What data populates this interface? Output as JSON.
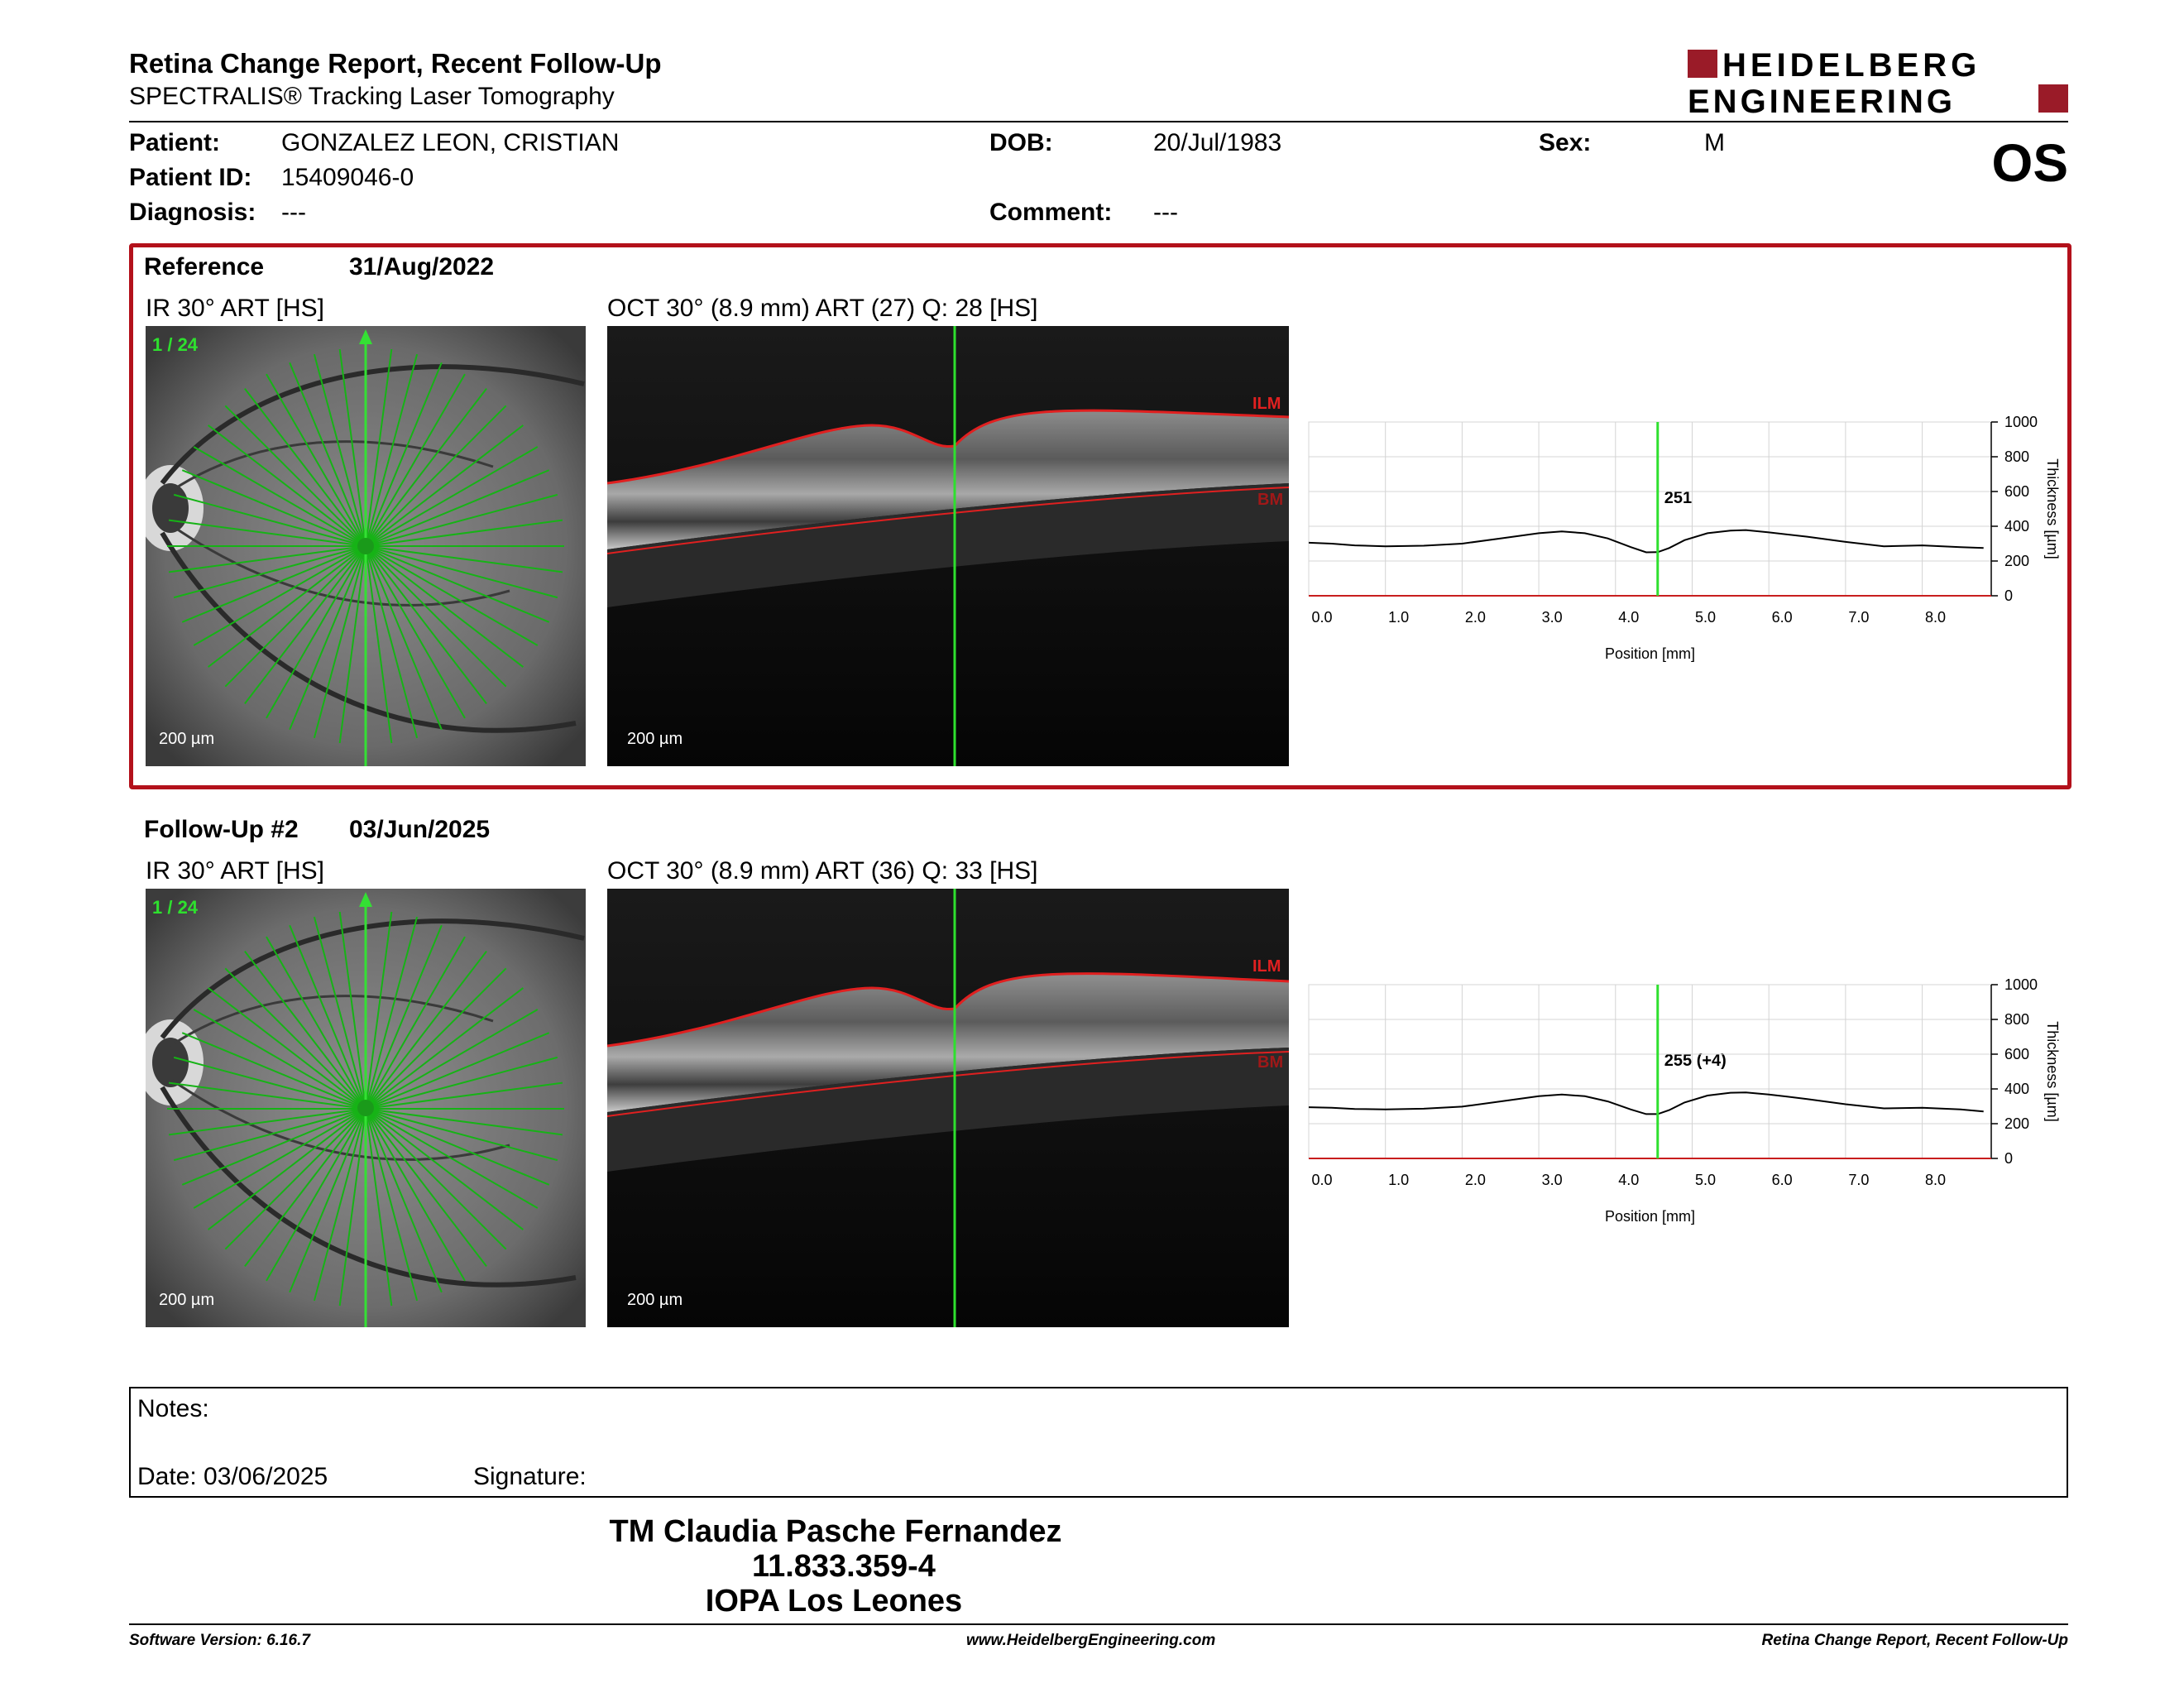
{
  "header": {
    "title": "Retina Change Report, Recent Follow-Up",
    "subtitle": "SPECTRALIS® Tracking Laser Tomography",
    "logo_line1": "HEIDELBERG",
    "logo_line2": "ENGINEERING"
  },
  "patient": {
    "patient_label": "Patient:",
    "patient_value": "GONZALEZ LEON, CRISTIAN",
    "id_label": "Patient ID:",
    "id_value": "15409046-0",
    "diagnosis_label": "Diagnosis:",
    "diagnosis_value": "---",
    "dob_label": "DOB:",
    "dob_value": "20/Jul/1983",
    "comment_label": "Comment:",
    "comment_value": "---",
    "sex_label": "Sex:",
    "sex_value": "M",
    "eye": "OS"
  },
  "reference": {
    "label": "Reference",
    "date": "31/Aug/2022",
    "ir_title": "IR 30° ART [HS]",
    "oct_title": "OCT 30° (8.9 mm) ART (27) Q: 28 [HS]",
    "scan_index": "1 / 24",
    "ir_scale": "200 µm",
    "oct_scale": "200 µm",
    "ilm_label": "ILM",
    "bm_label": "BM",
    "marker_value": "251"
  },
  "followup": {
    "label": "Follow-Up #2",
    "date": "03/Jun/2025",
    "ir_title": "IR 30° ART [HS]",
    "oct_title": "OCT 30° (8.9 mm) ART (36) Q: 33 [HS]",
    "scan_index": "1 / 24",
    "ir_scale": "200 µm",
    "oct_scale": "200 µm",
    "ilm_label": "ILM",
    "bm_label": "BM",
    "marker_value": "255 (+4)"
  },
  "chart_data": [
    {
      "type": "line",
      "xlabel": "Position [mm]",
      "ylabel": "Thickness [µm]",
      "xlim": [
        0,
        8.9
      ],
      "ylim": [
        0,
        1000
      ],
      "xticks": [
        "0.0",
        "1.0",
        "2.0",
        "3.0",
        "4.0",
        "5.0",
        "6.0",
        "7.0",
        "8.0"
      ],
      "yticks": [
        "0",
        "200",
        "400",
        "600",
        "800",
        "1000"
      ],
      "grid": true,
      "marker_x": 4.55,
      "series": [
        {
          "x": [
            0,
            0.3,
            0.6,
            1.0,
            1.5,
            2.0,
            2.5,
            3.0,
            3.3,
            3.6,
            3.9,
            4.2,
            4.4,
            4.55,
            4.7,
            4.9,
            5.2,
            5.5,
            5.7,
            6.0,
            6.5,
            7.0,
            7.5,
            8.0,
            8.5,
            8.8
          ],
          "values": [
            305,
            300,
            290,
            285,
            288,
            300,
            330,
            360,
            370,
            360,
            330,
            280,
            250,
            251,
            275,
            320,
            360,
            375,
            378,
            365,
            340,
            310,
            285,
            290,
            280,
            275
          ]
        }
      ]
    },
    {
      "type": "line",
      "xlabel": "Position [mm]",
      "ylabel": "Thickness [µm]",
      "xlim": [
        0,
        8.9
      ],
      "ylim": [
        0,
        1000
      ],
      "xticks": [
        "0.0",
        "1.0",
        "2.0",
        "3.0",
        "4.0",
        "5.0",
        "6.0",
        "7.0",
        "8.0"
      ],
      "yticks": [
        "0",
        "200",
        "400",
        "600",
        "800",
        "1000"
      ],
      "grid": true,
      "marker_x": 4.55,
      "series": [
        {
          "x": [
            0,
            0.3,
            0.6,
            1.0,
            1.5,
            2.0,
            2.5,
            3.0,
            3.3,
            3.6,
            3.9,
            4.2,
            4.4,
            4.55,
            4.7,
            4.9,
            5.2,
            5.5,
            5.7,
            6.0,
            6.5,
            7.0,
            7.5,
            8.0,
            8.5,
            8.8
          ],
          "values": [
            295,
            292,
            285,
            282,
            286,
            298,
            328,
            358,
            368,
            358,
            328,
            282,
            255,
            255,
            278,
            322,
            362,
            378,
            380,
            368,
            342,
            312,
            288,
            292,
            282,
            270
          ]
        }
      ]
    }
  ],
  "notes": {
    "notes_label": "Notes:",
    "date_label": "Date: 03/06/2025",
    "signature_label": "Signature:"
  },
  "signatory": {
    "name": "TM Claudia Pasche Fernandez",
    "id": "11.833.359-4",
    "org": "IOPA Los Leones"
  },
  "footer": {
    "left": "Software Version: 6.16.7",
    "center": "www.HeidelbergEngineering.com",
    "right": "Retina Change Report, Recent Follow-Up"
  },
  "colors": {
    "accent_red": "#b3111b",
    "scan_green": "#2ecc2e",
    "layer_red": "#d42020"
  }
}
